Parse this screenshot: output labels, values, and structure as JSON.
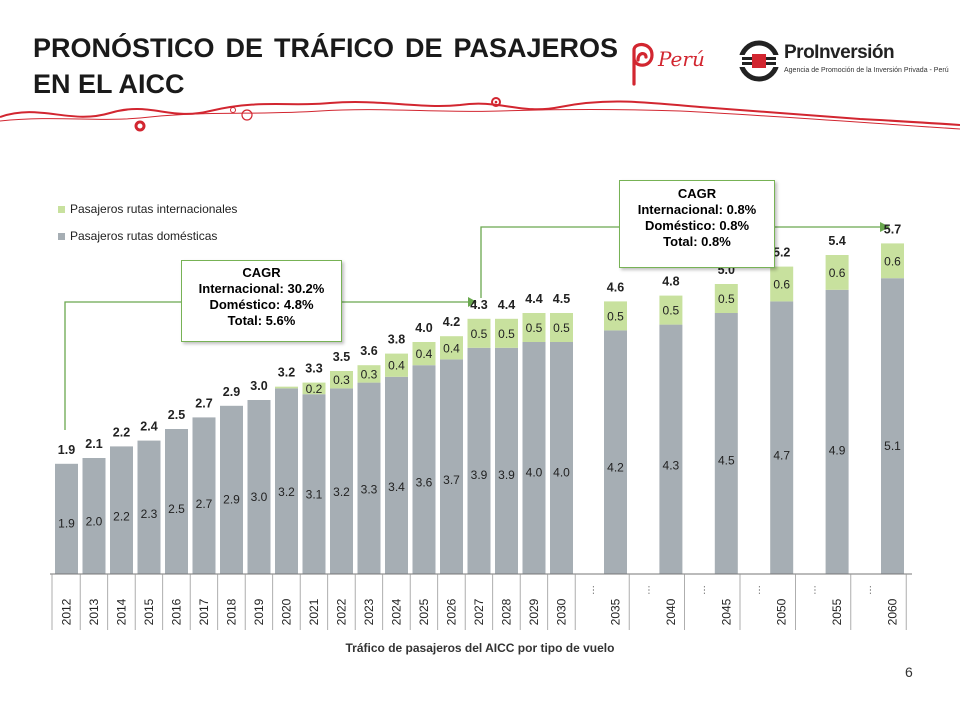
{
  "header": {
    "title_line1": "PRONÓSTICO DE TRÁFICO DE PASAJEROS",
    "title_line2": "EN EL AICC"
  },
  "logos": {
    "peru": "Perú",
    "proinversion_name": "ProInversión",
    "proinversion_tagline": "Agencia de Promoción de la Inversión Privada - Perú"
  },
  "colors": {
    "domestic": "#a6aeb4",
    "international": "#c8e19e",
    "arrow": "#6aa84f",
    "brand_red": "#d22630"
  },
  "cagr_left": {
    "title": "CAGR",
    "intl": "Internacional: 30.2%",
    "dom": "Doméstico: 4.8%",
    "total": "Total: 5.6%"
  },
  "cagr_right": {
    "title": "CAGR",
    "intl": "Internacional: 0.8%",
    "dom": "Doméstico: 0.8%",
    "total": "Total: 0.8%"
  },
  "caption": "Tráfico de pasajeros del AICC por tipo de vuelo",
  "page_number": "6",
  "gap_marker": "…",
  "chart_data": {
    "type": "bar",
    "stacked": true,
    "title": "Tráfico de pasajeros del AICC por tipo de vuelo",
    "legend": [
      "Pasajeros rutas internacionales",
      "Pasajeros rutas domésticas"
    ],
    "legend_position": "top-left",
    "categories": [
      "2012",
      "2013",
      "2014",
      "2015",
      "2016",
      "2017",
      "2018",
      "2019",
      "2020",
      "2021",
      "2022",
      "2023",
      "2024",
      "2025",
      "2026",
      "2027",
      "2028",
      "2029",
      "2030",
      "2035",
      "2040",
      "2045",
      "2050",
      "2055",
      "2060"
    ],
    "series": [
      {
        "name": "Pasajeros rutas domésticas",
        "values": [
          1.9,
          2.0,
          2.2,
          2.3,
          2.5,
          2.7,
          2.9,
          3.0,
          3.2,
          3.1,
          3.2,
          3.3,
          3.4,
          3.6,
          3.7,
          3.9,
          3.9,
          4.0,
          4.0,
          4.2,
          4.3,
          4.5,
          4.7,
          4.9,
          5.1
        ],
        "labels": [
          "1.9",
          "2.0",
          "2.2",
          "2.3",
          "2.5",
          "2.7",
          "2.9",
          "3.0",
          "3.2",
          "3.1",
          "3.2",
          "3.3",
          "3.4",
          "3.6",
          "3.7",
          "3.9",
          "3.9",
          "4.0",
          "4.0",
          "4.2",
          "4.3",
          "4.5",
          "4.7",
          "4.9",
          "5.1"
        ]
      },
      {
        "name": "Pasajeros rutas internacionales",
        "values": [
          0,
          0,
          0,
          0,
          0,
          0,
          0,
          0,
          0.03,
          0.2,
          0.3,
          0.3,
          0.4,
          0.4,
          0.4,
          0.5,
          0.5,
          0.5,
          0.5,
          0.5,
          0.5,
          0.5,
          0.6,
          0.6,
          0.6
        ],
        "labels": [
          "",
          "",
          "",
          "",
          "",
          "",
          "",
          "",
          "",
          "0.2",
          "0.3",
          "0.3",
          "0.4",
          "0.4",
          "0.4",
          "0.5",
          "0.5",
          "0.5",
          "0.5",
          "0.5",
          "0.5",
          "0.5",
          "0.6",
          "0.6",
          "0.6"
        ]
      }
    ],
    "totals": [
      1.9,
      2.1,
      2.2,
      2.4,
      2.5,
      2.7,
      2.9,
      3.0,
      3.2,
      3.3,
      3.5,
      3.6,
      3.8,
      4.0,
      4.2,
      4.3,
      4.4,
      4.4,
      4.5,
      4.6,
      4.8,
      5.0,
      5.2,
      5.4,
      5.7
    ],
    "total_labels": [
      "1.9",
      "2.1",
      "2.2",
      "2.4",
      "2.5",
      "2.7",
      "2.9",
      "3.0",
      "3.2",
      "3.3",
      "3.5",
      "3.6",
      "3.8",
      "4.0",
      "4.2",
      "4.3",
      "4.4",
      "4.4",
      "4.5",
      "4.6",
      "4.8",
      "5.0",
      "5.2",
      "5.4",
      "5.7"
    ],
    "gap_after_index": 18,
    "ylim": [
      0,
      6.2
    ],
    "xlabel": "",
    "ylabel": "",
    "grid": false
  }
}
